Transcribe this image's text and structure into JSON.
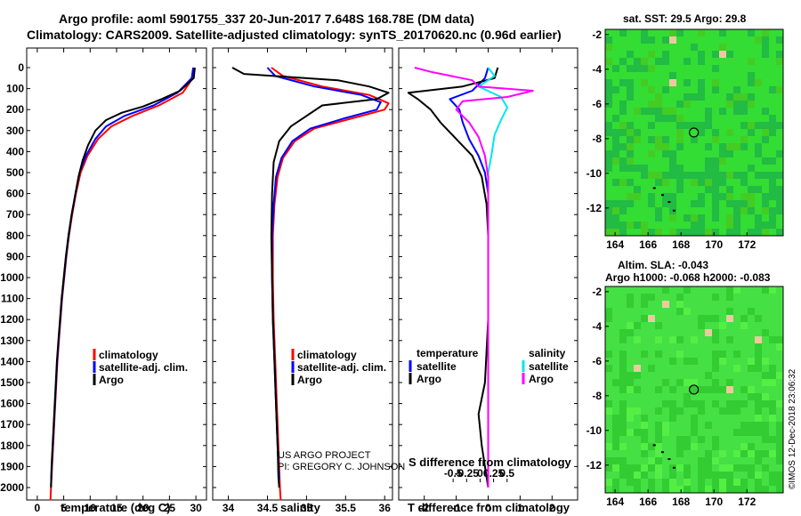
{
  "header": {
    "line1": "Argo profile: aoml 5901755_337 20-Jun-2017 7.648S 168.78E (DM data)",
    "line2": "Climatology: CARS2009. Satellite-adjusted climatology: synTS_20170620.nc (0.96d earlier)"
  },
  "chart_data": [
    {
      "type": "line",
      "name": "temperature-profile",
      "xlabel": "temperature (deg C)",
      "ylabel": "",
      "xlim": [
        -2,
        32
      ],
      "ylim": [
        2080,
        0
      ],
      "xticks": [
        0,
        5,
        10,
        15,
        20,
        25,
        30
      ],
      "xtick_labels": [
        "0",
        "5",
        "10",
        "15",
        "20",
        "25",
        "30"
      ],
      "yticks": [
        0,
        100,
        200,
        300,
        400,
        500,
        600,
        700,
        800,
        900,
        1000,
        1100,
        1200,
        1300,
        1400,
        1500,
        1600,
        1700,
        1800,
        1900,
        2000
      ],
      "legend": [
        "climatology",
        "satellite-adj. clim.",
        "Argo"
      ],
      "series": [
        {
          "name": "climatology",
          "color": "#ff0000",
          "points": [
            [
              29.6,
              0
            ],
            [
              29.4,
              50
            ],
            [
              27.5,
              120
            ],
            [
              23,
              180
            ],
            [
              18,
              230
            ],
            [
              14,
              280
            ],
            [
              11.5,
              340
            ],
            [
              9.5,
              420
            ],
            [
              8.2,
              500
            ],
            [
              7.3,
              600
            ],
            [
              6.6,
              700
            ],
            [
              6,
              800
            ],
            [
              5.5,
              900
            ],
            [
              5.1,
              1000
            ],
            [
              4.7,
              1100
            ],
            [
              4.4,
              1200
            ],
            [
              4.1,
              1300
            ],
            [
              3.8,
              1400
            ],
            [
              3.6,
              1500
            ],
            [
              3.4,
              1600
            ],
            [
              3.2,
              1700
            ],
            [
              3,
              1800
            ],
            [
              2.8,
              1900
            ],
            [
              2.6,
              2000
            ],
            [
              2.5,
              2060
            ]
          ]
        },
        {
          "name": "satellite-adj. clim.",
          "color": "#0000ff",
          "points": [
            [
              29.5,
              0
            ],
            [
              29.2,
              50
            ],
            [
              26.5,
              120
            ],
            [
              22,
              180
            ],
            [
              16.5,
              230
            ],
            [
              13,
              280
            ],
            [
              11,
              340
            ],
            [
              9.2,
              420
            ],
            [
              8,
              500
            ],
            [
              7.2,
              600
            ],
            [
              6.5,
              700
            ],
            [
              5.95,
              800
            ],
            [
              5.45,
              900
            ],
            [
              5.05,
              1000
            ],
            [
              4.65,
              1100
            ],
            [
              4.35,
              1200
            ],
            [
              4.05,
              1300
            ],
            [
              3.75,
              1400
            ],
            [
              3.55,
              1500
            ],
            [
              3.35,
              1600
            ],
            [
              3.15,
              1700
            ],
            [
              2.95,
              1800
            ],
            [
              2.75,
              1900
            ],
            [
              2.6,
              1990
            ]
          ]
        },
        {
          "name": "Argo",
          "color": "#000000",
          "points": [
            [
              29.8,
              0
            ],
            [
              29.6,
              50
            ],
            [
              27,
              110
            ],
            [
              23.5,
              150
            ],
            [
              20,
              185
            ],
            [
              16,
              215
            ],
            [
              13,
              250
            ],
            [
              11,
              300
            ],
            [
              9.6,
              370
            ],
            [
              8.6,
              440
            ],
            [
              7.8,
              520
            ],
            [
              7.1,
              620
            ],
            [
              6.5,
              700
            ],
            [
              5.9,
              800
            ],
            [
              5.4,
              900
            ],
            [
              5,
              1000
            ],
            [
              4.6,
              1100
            ],
            [
              4.3,
              1200
            ],
            [
              4,
              1300
            ],
            [
              3.7,
              1400
            ],
            [
              3.5,
              1500
            ],
            [
              3.3,
              1600
            ],
            [
              3.1,
              1700
            ],
            [
              2.9,
              1800
            ],
            [
              2.7,
              1900
            ],
            [
              2.6,
              2000
            ]
          ]
        }
      ]
    },
    {
      "type": "line",
      "name": "salinity-profile",
      "xlabel": "salinity",
      "xlim": [
        33.8,
        36.1
      ],
      "ylim": [
        2080,
        0
      ],
      "xticks": [
        34,
        34.5,
        35,
        35.5,
        36
      ],
      "xtick_labels": [
        "34",
        "34.5",
        "35",
        "35.5",
        "36"
      ],
      "legend": [
        "climatology",
        "satellite-adj. clim.",
        "Argo"
      ],
      "series": [
        {
          "name": "climatology",
          "color": "#ff0000",
          "points": [
            [
              34.55,
              0
            ],
            [
              34.7,
              40
            ],
            [
              35.2,
              90
            ],
            [
              35.8,
              130
            ],
            [
              36.05,
              170
            ],
            [
              36,
              200
            ],
            [
              35.6,
              240
            ],
            [
              35.1,
              290
            ],
            [
              34.85,
              350
            ],
            [
              34.7,
              430
            ],
            [
              34.63,
              520
            ],
            [
              34.59,
              650
            ],
            [
              34.57,
              800
            ],
            [
              34.57,
              1000
            ],
            [
              34.58,
              1200
            ],
            [
              34.6,
              1400
            ],
            [
              34.62,
              1600
            ],
            [
              34.64,
              1800
            ],
            [
              34.66,
              2000
            ],
            [
              34.67,
              2060
            ]
          ]
        },
        {
          "name": "satellite-adj. clim.",
          "color": "#0000ff",
          "points": [
            [
              34.5,
              0
            ],
            [
              34.6,
              40
            ],
            [
              35.1,
              90
            ],
            [
              35.7,
              130
            ],
            [
              35.95,
              165
            ],
            [
              35.9,
              200
            ],
            [
              35.5,
              240
            ],
            [
              35.05,
              290
            ],
            [
              34.82,
              350
            ],
            [
              34.68,
              430
            ],
            [
              34.61,
              520
            ],
            [
              34.58,
              650
            ],
            [
              34.56,
              800
            ],
            [
              34.56,
              1000
            ],
            [
              34.57,
              1200
            ],
            [
              34.59,
              1400
            ],
            [
              34.61,
              1600
            ],
            [
              34.63,
              1800
            ],
            [
              34.65,
              1960
            ]
          ]
        },
        {
          "name": "Argo",
          "color": "#000000",
          "points": [
            [
              34.05,
              0
            ],
            [
              34.2,
              30
            ],
            [
              35.4,
              60
            ],
            [
              35.8,
              90
            ],
            [
              36.05,
              120
            ],
            [
              35.9,
              150
            ],
            [
              35.2,
              180
            ],
            [
              35,
              230
            ],
            [
              34.8,
              280
            ],
            [
              34.65,
              350
            ],
            [
              34.58,
              450
            ],
            [
              34.56,
              600
            ],
            [
              34.55,
              800
            ],
            [
              34.56,
              1000
            ],
            [
              34.57,
              1200
            ],
            [
              34.59,
              1400
            ],
            [
              34.61,
              1600
            ],
            [
              34.63,
              1800
            ],
            [
              34.64,
              1950
            ],
            [
              34.65,
              2000
            ]
          ]
        }
      ]
    },
    {
      "type": "line",
      "name": "difference-profile",
      "xlabel": "T difference from climatology",
      "xlabel_top": "S difference from climatology",
      "xlim": [
        -2.8,
        2.8
      ],
      "ylim": [
        2080,
        0
      ],
      "xticks": [
        -2,
        -1,
        0,
        1,
        2
      ],
      "xtick_labels": [
        "-2",
        "-1",
        "0",
        "1",
        "2"
      ],
      "s_xticks": [
        -0.5,
        -0.25,
        0,
        0.25,
        0.5
      ],
      "s_xtick_labels": [
        "-0.5",
        "-0.25",
        "0",
        "0.25",
        "0.5"
      ],
      "legend_temperature_title": "temperature",
      "legend_salinity_title": "salinity",
      "legend_temperature": [
        "satellite",
        "Argo"
      ],
      "legend_salinity": [
        "satellite",
        "Argo"
      ],
      "series": [
        {
          "name": "T satellite",
          "color": "#0000ff",
          "points": [
            [
              0,
              0
            ],
            [
              -0.1,
              50
            ],
            [
              -0.5,
              110
            ],
            [
              -1.2,
              150
            ],
            [
              -0.9,
              200
            ],
            [
              -0.8,
              260
            ],
            [
              -0.6,
              340
            ],
            [
              -0.3,
              420
            ],
            [
              -0.1,
              500
            ],
            [
              0,
              600
            ],
            [
              0,
              1000
            ],
            [
              0,
              2000
            ]
          ]
        },
        {
          "name": "T Argo",
          "color": "#000000",
          "points": [
            [
              0.3,
              0
            ],
            [
              0.2,
              50
            ],
            [
              -0.8,
              90
            ],
            [
              -2.5,
              120
            ],
            [
              -2.2,
              150
            ],
            [
              -1.8,
              200
            ],
            [
              -1.5,
              260
            ],
            [
              -1,
              340
            ],
            [
              -0.5,
              420
            ],
            [
              -0.2,
              520
            ],
            [
              -0.05,
              650
            ],
            [
              0,
              800
            ],
            [
              0,
              1200
            ],
            [
              -0.1,
              1500
            ],
            [
              -0.3,
              1650
            ],
            [
              -0.2,
              1800
            ],
            [
              -0.1,
              1900
            ],
            [
              0,
              2000
            ]
          ]
        },
        {
          "name": "S satellite",
          "color": "#00e5ee",
          "points": [
            [
              0,
              0
            ],
            [
              0.2,
              40
            ],
            [
              -0.3,
              90
            ],
            [
              0.4,
              140
            ],
            [
              0.6,
              190
            ],
            [
              0.4,
              250
            ],
            [
              0.2,
              320
            ],
            [
              0.1,
              420
            ],
            [
              0,
              500
            ],
            [
              0,
              1000
            ],
            [
              0,
              2000
            ]
          ]
        },
        {
          "name": "S Argo",
          "color": "#ff00ff",
          "points": [
            [
              -2.3,
              0
            ],
            [
              -1.8,
              20
            ],
            [
              -0.5,
              60
            ],
            [
              -0.3,
              90
            ],
            [
              1.4,
              110
            ],
            [
              0.6,
              140
            ],
            [
              -0.8,
              160
            ],
            [
              -1.0,
              200
            ],
            [
              -0.6,
              260
            ],
            [
              -0.3,
              330
            ],
            [
              -0.1,
              420
            ],
            [
              0,
              520
            ],
            [
              0,
              1000
            ],
            [
              0,
              2000
            ]
          ]
        }
      ]
    },
    {
      "type": "heatmap",
      "name": "sst-map",
      "title": "sat. SST: 29.5 Argo: 29.8",
      "xticks": [
        164,
        166,
        168,
        170,
        172
      ],
      "xtick_labels": [
        "164",
        "166",
        "168",
        "170",
        "172"
      ],
      "yticks": [
        -2,
        -4,
        -6,
        -8,
        -10,
        -12
      ],
      "ytick_labels": [
        "-2",
        "-4",
        "-6",
        "-8",
        "-10",
        "-12"
      ],
      "xlim": [
        163.4,
        174.2
      ],
      "ylim": [
        -13.6,
        -1.7
      ],
      "float_position": [
        168.78,
        -7.648
      ]
    },
    {
      "type": "heatmap",
      "name": "sla-map",
      "title": "Altim. SLA: -0.043",
      "subtitle": "Argo h1000: -0.068 h2000: -0.083",
      "xticks": [
        164,
        166,
        168,
        170,
        172
      ],
      "xtick_labels": [
        "164",
        "166",
        "168",
        "170",
        "172"
      ],
      "yticks": [
        -2,
        -4,
        -6,
        -8,
        -10,
        -12
      ],
      "ytick_labels": [
        "-2",
        "-4",
        "-6",
        "-8",
        "-10",
        "-12"
      ],
      "xlim": [
        163.4,
        174.2
      ],
      "ylim": [
        -13.6,
        -1.7
      ],
      "float_position": [
        168.78,
        -7.648
      ]
    }
  ],
  "depth_ticks": [
    "0",
    "100",
    "200",
    "300",
    "400",
    "500",
    "600",
    "700",
    "800",
    "900",
    "1000",
    "1100",
    "1200",
    "1300",
    "1400",
    "1500",
    "1600",
    "1700",
    "1800",
    "1900",
    "2000"
  ],
  "credits": {
    "project": "US ARGO PROJECT",
    "pi": "PI: GREGORY C. JOHNSON",
    "imos": "©IMOS 12-Dec-2018 23:06:32"
  },
  "colors": {
    "climatology": "#ff0000",
    "satellite": "#0000ff",
    "argo": "#000000",
    "s_satellite": "#00e5ee",
    "s_argo": "#ff00ff"
  }
}
